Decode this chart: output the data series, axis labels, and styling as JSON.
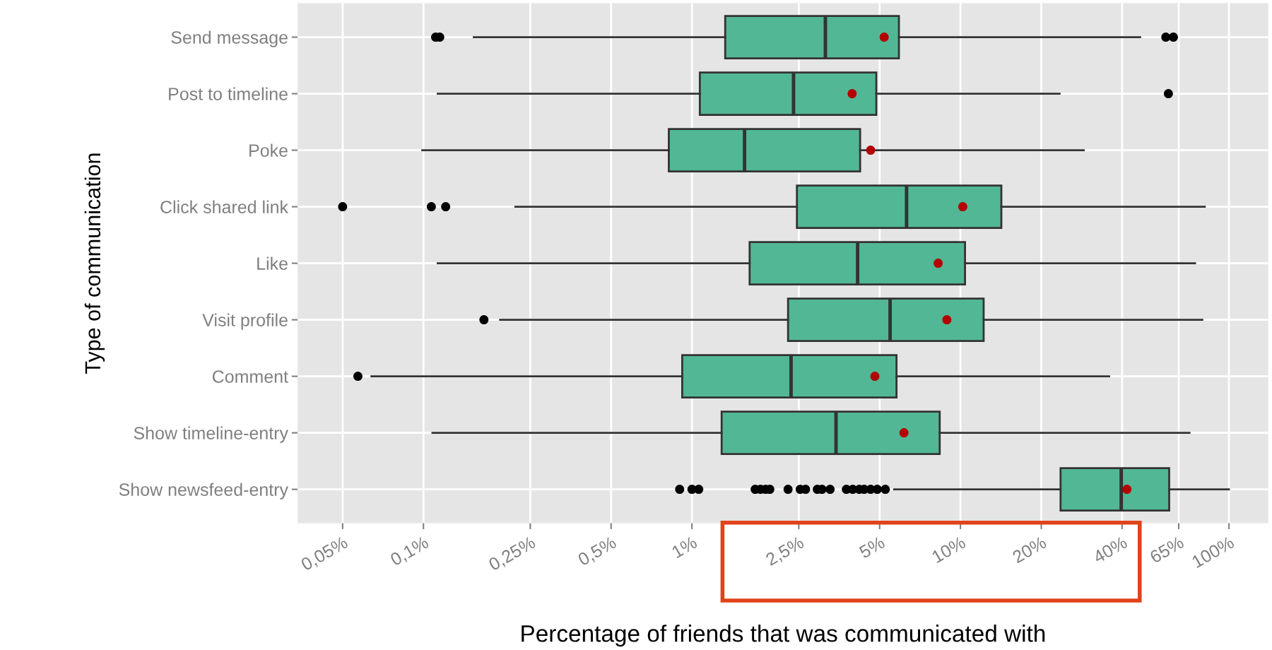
{
  "chart_data": {
    "type": "box",
    "orientation": "horizontal",
    "log": "x",
    "grid": true,
    "xlabel": "Percentage of friends that was communicated with",
    "ylabel": "Type of communication",
    "categories": [
      "Send message",
      "Post to timeline",
      "Poke",
      "Click shared link",
      "Like",
      "Visit profile",
      "Comment",
      "Show timeline-entry",
      "Show newsfeed-entry"
    ],
    "xlim": [
      0.034,
      140
    ],
    "xticks": [
      {
        "value": 0.05,
        "label": "0,05%"
      },
      {
        "value": 0.1,
        "label": "0,1%"
      },
      {
        "value": 0.25,
        "label": "0,25%"
      },
      {
        "value": 0.5,
        "label": "0,5%"
      },
      {
        "value": 1,
        "label": "1%"
      },
      {
        "value": 2.5,
        "label": "2,5%"
      },
      {
        "value": 5,
        "label": "5%"
      },
      {
        "value": 10,
        "label": "10%"
      },
      {
        "value": 20,
        "label": "20%"
      },
      {
        "value": 40,
        "label": "40%"
      },
      {
        "value": 65,
        "label": "65%"
      },
      {
        "value": 100,
        "label": "100%"
      }
    ],
    "series": [
      {
        "color": "#52b795",
        "boxes": [
          {
            "low": 0.154,
            "q1": 1.33,
            "median": 3.14,
            "q3": 5.9,
            "high": 46.7,
            "mean": 5.2,
            "outliers": [
              0.111,
              0.115,
              58.2,
              62.1
            ]
          },
          {
            "low": 0.113,
            "q1": 1.07,
            "median": 2.39,
            "q3": 4.86,
            "high": 23.4,
            "mean": 3.95,
            "outliers": [
              59.5
            ]
          },
          {
            "low": 0.099,
            "q1": 0.82,
            "median": 1.57,
            "q3": 4.23,
            "high": 28.8,
            "mean": 4.63
          },
          {
            "low": 0.22,
            "q1": 2.46,
            "median": 6.3,
            "q3": 14.2,
            "high": 81.3,
            "mean": 10.2,
            "outliers": [
              0.05,
              0.107,
              0.121
            ]
          },
          {
            "low": 0.113,
            "q1": 1.64,
            "median": 4.14,
            "q3": 10.4,
            "high": 74.8,
            "mean": 8.26
          },
          {
            "low": 0.193,
            "q1": 2.28,
            "median": 5.47,
            "q3": 12.2,
            "high": 79.6,
            "mean": 8.9,
            "outliers": [
              0.168
            ]
          },
          {
            "low": 0.064,
            "q1": 0.92,
            "median": 2.34,
            "q3": 5.78,
            "high": 35.8,
            "mean": 4.8,
            "outliers": [
              0.057
            ]
          },
          {
            "low": 0.108,
            "q1": 1.29,
            "median": 3.44,
            "q3": 8.37,
            "high": 71.3,
            "mean": 6.16
          },
          {
            "low": 5.66,
            "q1": 23.6,
            "median": 39.7,
            "q3": 59.9,
            "high": 100,
            "mean": 41.7,
            "outliers": [
              0.9,
              1.0,
              1.06,
              1.72,
              1.8,
              1.88,
              1.95,
              2.28,
              2.53,
              2.65,
              2.93,
              3.05,
              3.27,
              3.76,
              3.97,
              4.2,
              4.38,
              4.63,
              4.9,
              5.25
            ]
          }
        ]
      }
    ]
  }
}
